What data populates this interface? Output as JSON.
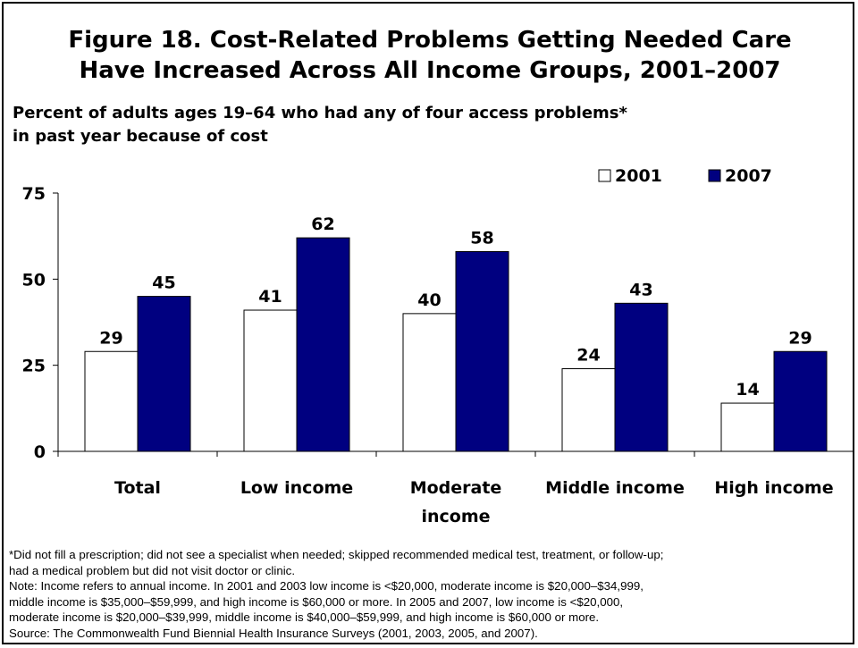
{
  "title_line1": "Figure 18. Cost-Related Problems Getting Needed Care",
  "title_line2": "Have Increased Across All Income Groups, 2001–2007",
  "subtitle_line1": "Percent of adults ages 19–64 who had any of four access problems*",
  "subtitle_line2": "in past year because of cost",
  "colors": {
    "series_2001": "#ffffff",
    "series_2007": "#000080",
    "stroke": "#000000"
  },
  "chart_data": {
    "type": "bar",
    "categories": [
      [
        "Total"
      ],
      [
        "Low income"
      ],
      [
        "Moderate",
        "income"
      ],
      [
        "Middle income"
      ],
      [
        "High income"
      ]
    ],
    "series": [
      {
        "name": "2001",
        "values": [
          29,
          41,
          40,
          24,
          14
        ]
      },
      {
        "name": "2007",
        "values": [
          45,
          62,
          58,
          43,
          29
        ]
      }
    ],
    "ylim": [
      0,
      75
    ],
    "yticks": [
      0,
      25,
      50,
      75
    ],
    "grid": false,
    "legend_position": "top-right"
  },
  "footnotes": {
    "line1": "*Did not fill a prescription; did not see a specialist when needed; skipped recommended medical test, treatment, or follow-up;",
    "line2": "had a medical problem but did not visit doctor or clinic.",
    "line3": "Note: Income refers to annual income. In 2001 and 2003 low income is <$20,000, moderate income is $20,000–$34,999,",
    "line4": "middle income is $35,000–$59,999, and high income is $60,000 or more. In 2005 and 2007, low income is <$20,000,",
    "line5": "moderate income is $20,000–$39,999, middle income is $40,000–$59,999, and high income is $60,000 or more.",
    "line6": "Source: The Commonwealth Fund Biennial Health Insurance Surveys (2001, 2003, 2005, and 2007)."
  }
}
